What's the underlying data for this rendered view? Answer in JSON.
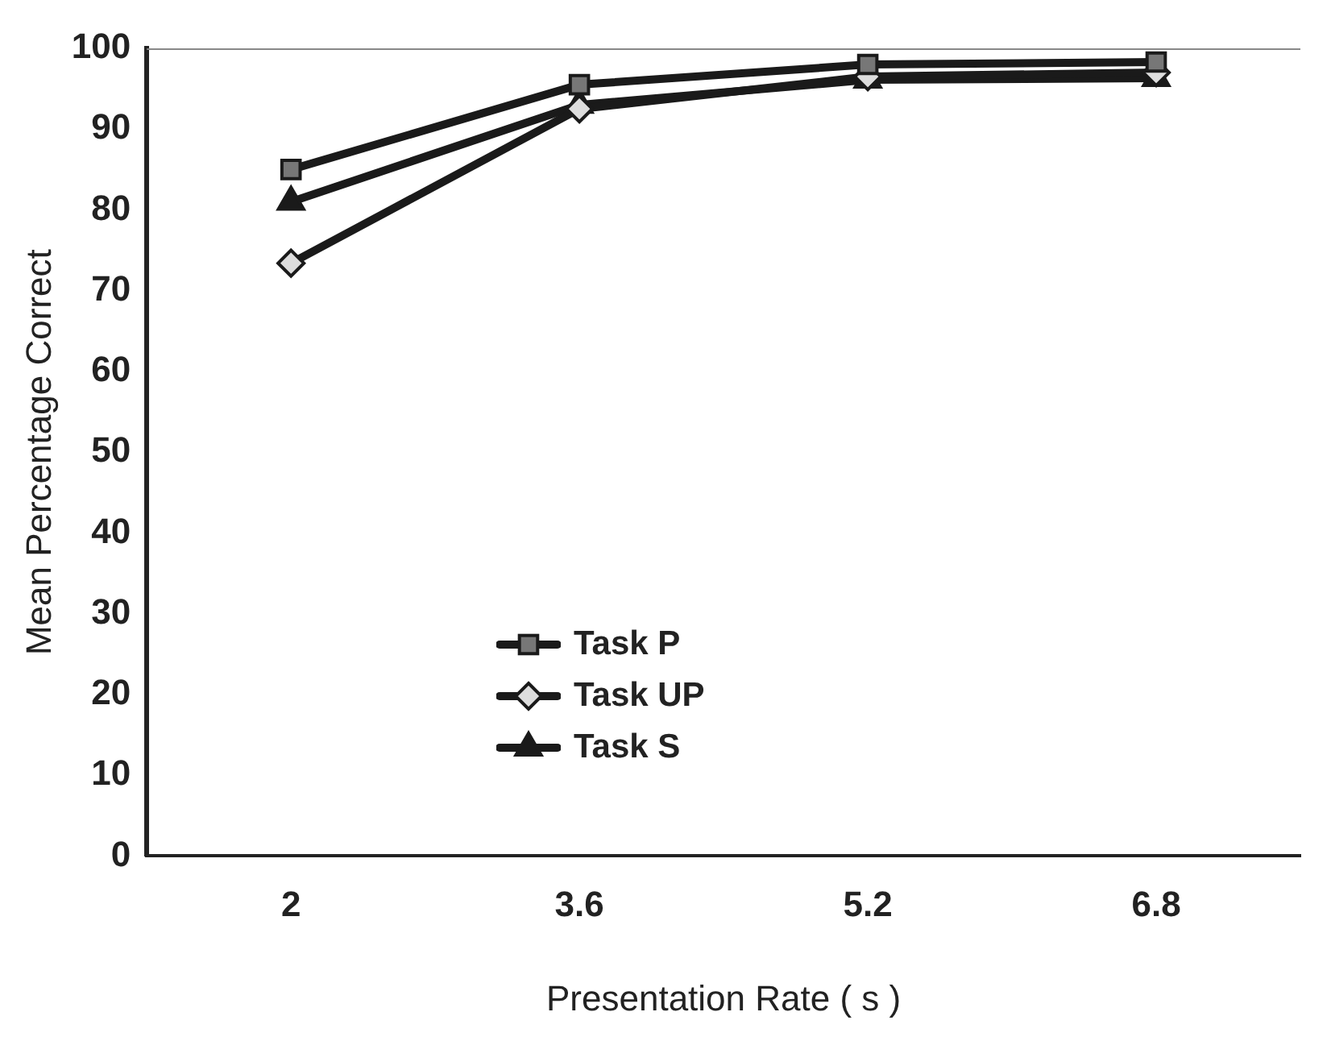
{
  "chart_data": {
    "type": "line",
    "xlabel": "Presentation Rate ( s )",
    "ylabel": "Mean Percentage Correct",
    "categories": [
      "2",
      "3.6",
      "5.2",
      "6.8"
    ],
    "ylim": [
      0,
      100
    ],
    "yticks": [
      0,
      10,
      20,
      30,
      40,
      50,
      60,
      70,
      80,
      90,
      100
    ],
    "grid": false,
    "legend": "bottom",
    "series": [
      {
        "name": "Task P",
        "color": "#1a1a1a",
        "marker": "square",
        "values": [
          85,
          95.5,
          98,
          98.3
        ]
      },
      {
        "name": "Task UP",
        "color": "#1a1a1a",
        "marker": "diamond",
        "values": [
          73.4,
          92.5,
          96.5,
          97
        ]
      },
      {
        "name": "Task S",
        "color": "#1a1a1a",
        "marker": "triangle",
        "values": [
          81,
          93,
          96.1,
          96.3
        ]
      }
    ]
  }
}
